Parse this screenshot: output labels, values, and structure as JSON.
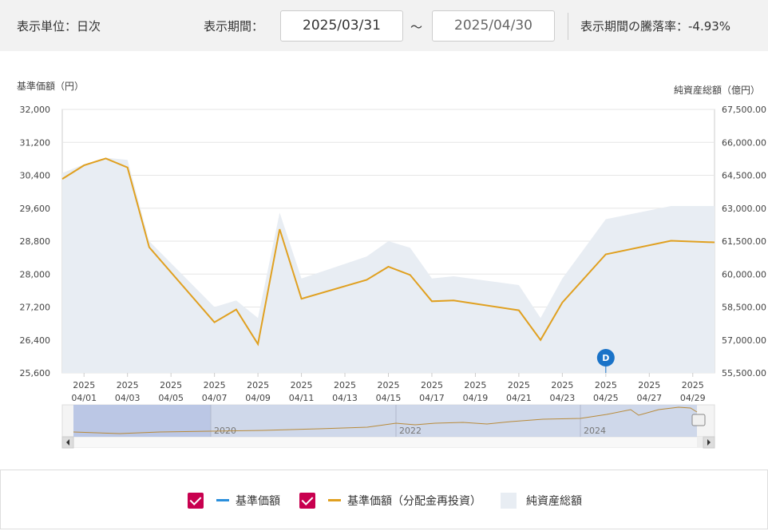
{
  "header": {
    "unit_label": "表示単位：日次",
    "period_label": "表示期間：",
    "start_date": "2025/03/31",
    "range_sep": "〜",
    "end_date": "2025/04/30",
    "change_label": "表示期間の騰落率：-4.93%"
  },
  "chart_data": {
    "type": "line",
    "left_axis_label": "基準価額（円）",
    "right_axis_label": "純資産総額（億円）",
    "left_ticks": [
      "32,000",
      "31,200",
      "30,400",
      "29,600",
      "28,800",
      "28,000",
      "27,200",
      "26,400",
      "25,600"
    ],
    "right_ticks": [
      "67,500.00",
      "66,000.00",
      "64,500.00",
      "63,000.00",
      "61,500.00",
      "60,000.00",
      "58,500.00",
      "57,000.00",
      "55,500.00"
    ],
    "ylim_left": [
      25600,
      32000
    ],
    "ylim_right": [
      55500,
      67500
    ],
    "x_ticks": [
      {
        "year": "2025",
        "md": "04/01"
      },
      {
        "year": "2025",
        "md": "04/03"
      },
      {
        "year": "2025",
        "md": "04/05"
      },
      {
        "year": "2025",
        "md": "04/07"
      },
      {
        "year": "2025",
        "md": "04/09"
      },
      {
        "year": "2025",
        "md": "04/11"
      },
      {
        "year": "2025",
        "md": "04/13"
      },
      {
        "year": "2025",
        "md": "04/15"
      },
      {
        "year": "2025",
        "md": "04/17"
      },
      {
        "year": "2025",
        "md": "04/19"
      },
      {
        "year": "2025",
        "md": "04/21"
      },
      {
        "year": "2025",
        "md": "04/23"
      },
      {
        "year": "2025",
        "md": "04/25"
      },
      {
        "year": "2025",
        "md": "04/27"
      },
      {
        "year": "2025",
        "md": "04/29"
      }
    ],
    "series": [
      {
        "name": "基準価額（分配金再投資）",
        "color": "#e0a020",
        "x": [
          "2025-03-31",
          "2025-04-01",
          "2025-04-02",
          "2025-04-03",
          "2025-04-04",
          "2025-04-07",
          "2025-04-08",
          "2025-04-09",
          "2025-04-10",
          "2025-04-11",
          "2025-04-14",
          "2025-04-15",
          "2025-04-16",
          "2025-04-17",
          "2025-04-18",
          "2025-04-21",
          "2025-04-22",
          "2025-04-23",
          "2025-04-25",
          "2025-04-28",
          "2025-04-30"
        ],
        "values": [
          30310,
          30640,
          30810,
          30590,
          28650,
          26830,
          27140,
          26300,
          29090,
          27400,
          27860,
          28180,
          27980,
          27340,
          27360,
          27120,
          26400,
          27310,
          28480,
          28810,
          28770
        ]
      },
      {
        "name": "純資産総額",
        "color": "#e8edf3",
        "x": [
          "2025-03-31",
          "2025-04-01",
          "2025-04-02",
          "2025-04-03",
          "2025-04-04",
          "2025-04-07",
          "2025-04-08",
          "2025-04-09",
          "2025-04-10",
          "2025-04-11",
          "2025-04-14",
          "2025-04-15",
          "2025-04-16",
          "2025-04-17",
          "2025-04-18",
          "2025-04-21",
          "2025-04-22",
          "2025-04-23",
          "2025-04-25",
          "2025-04-28",
          "2025-04-30"
        ],
        "values": [
          64600,
          65000,
          65300,
          65200,
          61500,
          58500,
          58800,
          58000,
          62800,
          59800,
          60800,
          61500,
          61200,
          59800,
          59900,
          59500,
          58000,
          59800,
          62500,
          63100,
          63100
        ]
      }
    ],
    "annotation": {
      "label": "D",
      "x": "2025-04-25"
    },
    "navigator": {
      "years": [
        "2020",
        "2022",
        "2024"
      ]
    }
  },
  "legend": {
    "items": [
      {
        "label": "基準価額",
        "color": "#2a8fdc"
      },
      {
        "label": "基準価額（分配金再投資）",
        "color": "#e0a020"
      },
      {
        "label": "純資産総額",
        "color": "#e8edf3"
      }
    ]
  }
}
